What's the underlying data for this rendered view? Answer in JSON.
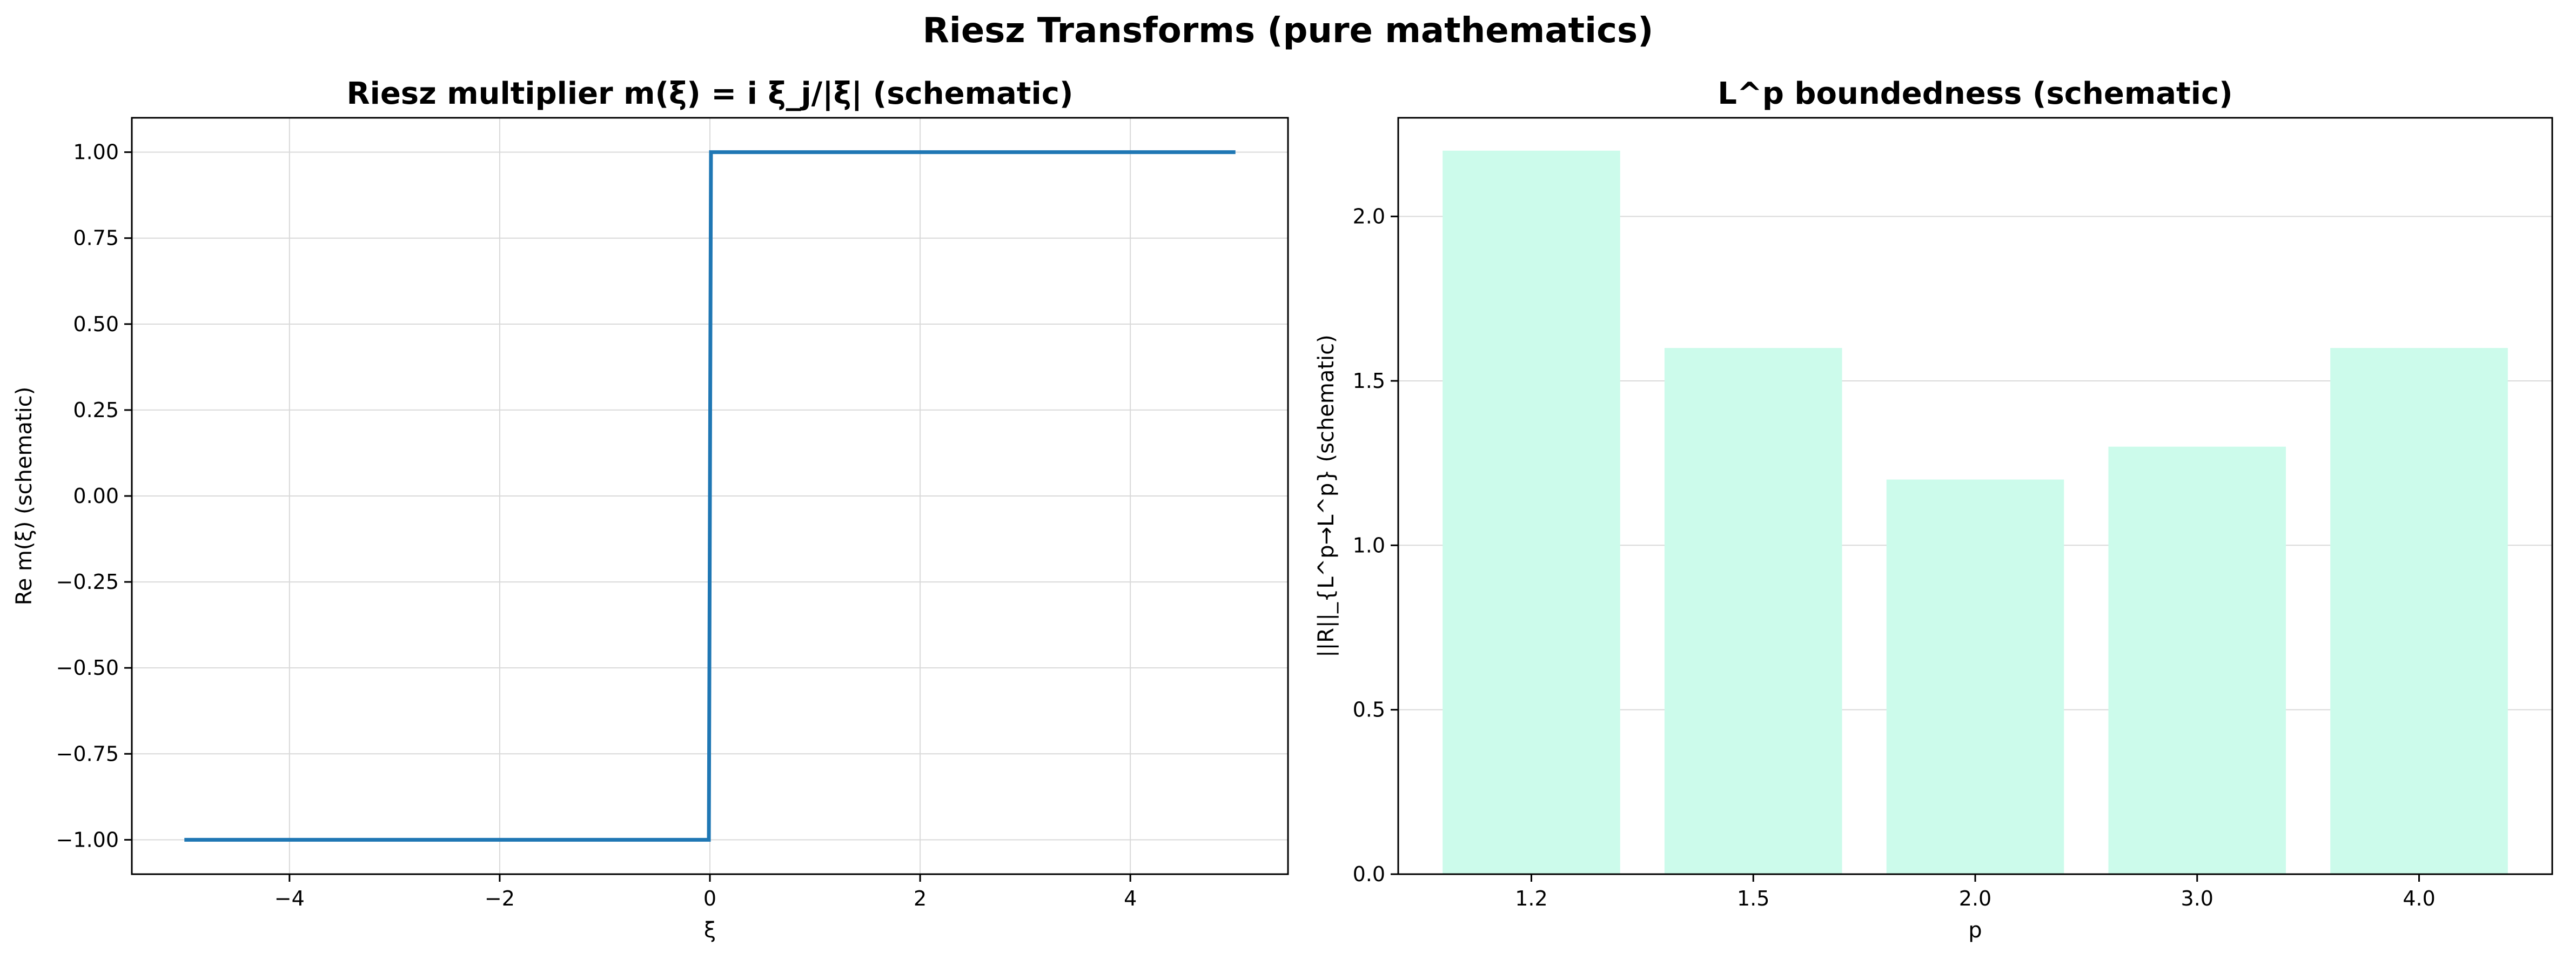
{
  "suptitle": "Riesz Transforms (pure mathematics)",
  "colors": {
    "line": "#1f77b4",
    "bar": "#ccfbeb",
    "grid": "#d9d9d9"
  },
  "chart_data": [
    {
      "type": "line",
      "title": "Riesz multiplier m(ξ) = i ξ_j/|ξ| (schematic)",
      "xlabel": "ξ",
      "ylabel": "Re m(ξ) (schematic)",
      "xlim": [
        -5.5,
        5.5
      ],
      "ylim": [
        -1.1,
        1.1
      ],
      "xticks": [
        -4,
        -2,
        0,
        2,
        4
      ],
      "xtick_labels": [
        "−4",
        "−2",
        "0",
        "2",
        "4"
      ],
      "yticks": [
        -1.0,
        -0.75,
        -0.5,
        -0.25,
        0.0,
        0.25,
        0.5,
        0.75,
        1.0
      ],
      "ytick_labels": [
        "−1.00",
        "−0.75",
        "−0.50",
        "−0.25",
        "0.00",
        "0.25",
        "0.50",
        "0.75",
        "1.00"
      ],
      "grid": true,
      "series": [
        {
          "x": [
            -5,
            -0.01,
            0.01,
            5
          ],
          "y": [
            -1,
            -1,
            1,
            1
          ]
        }
      ]
    },
    {
      "type": "bar",
      "title": "L^p boundedness (schematic)",
      "xlabel": "p",
      "ylabel": "||R||_{L^p→L^p} (schematic)",
      "categories": [
        "1.2",
        "1.5",
        "2.0",
        "3.0",
        "4.0"
      ],
      "values": [
        2.2,
        1.6,
        1.2,
        1.3,
        1.6
      ],
      "ylim": [
        0,
        2.3
      ],
      "yticks": [
        0.0,
        0.5,
        1.0,
        1.5,
        2.0
      ],
      "ytick_labels": [
        "0.0",
        "0.5",
        "1.0",
        "1.5",
        "2.0"
      ],
      "grid": true
    }
  ]
}
